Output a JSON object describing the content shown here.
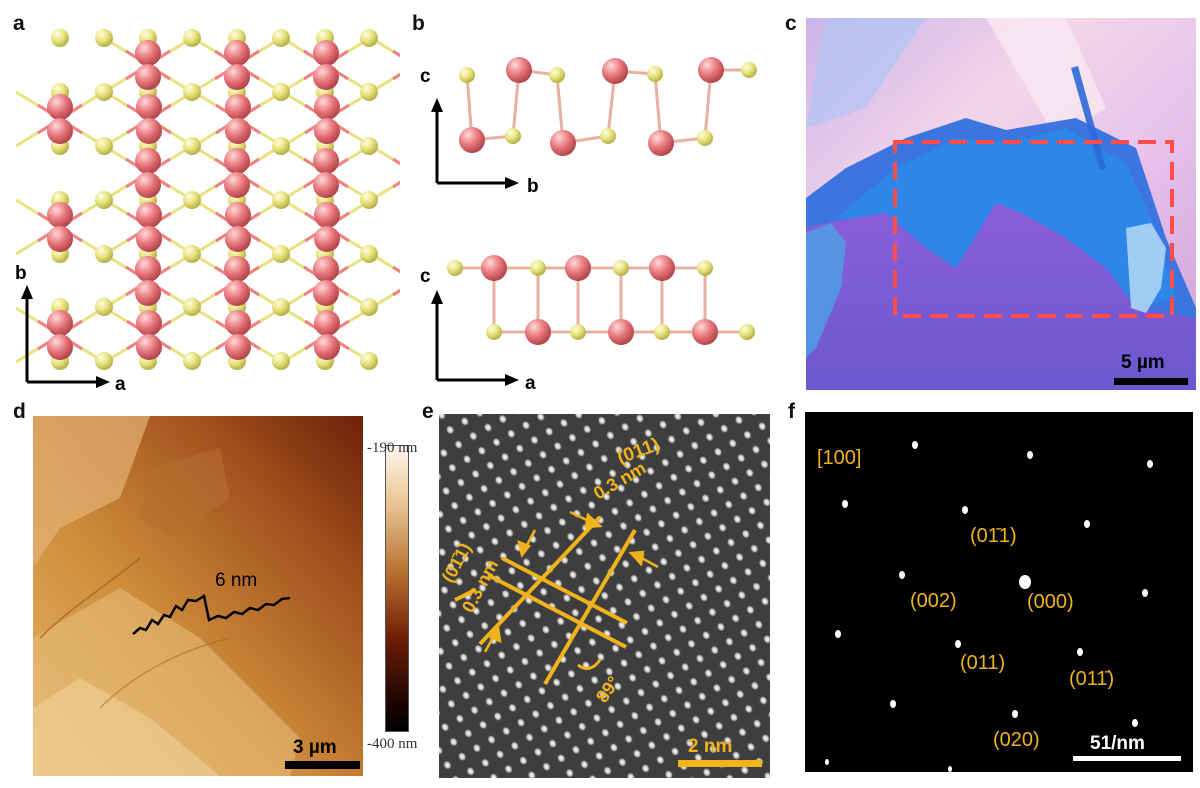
{
  "panels": {
    "a": {
      "letter": "a",
      "axis_v": "b",
      "axis_h": "a"
    },
    "b": {
      "letter": "b",
      "top_axis_v": "c",
      "top_axis_h": "b",
      "bottom_axis_v": "c",
      "bottom_axis_h": "a"
    },
    "c": {
      "letter": "c",
      "scale_label": "5 µm"
    },
    "d": {
      "letter": "d",
      "profile_label": "6 nm",
      "scale_label": "3 µm",
      "colorbar_max": "-190 nm",
      "colorbar_min": "-400 nm"
    },
    "e": {
      "letter": "e",
      "plane_1": "(011)",
      "spacing_1": "0.3 nm",
      "plane_2": "(01̄1)",
      "spacing_2": "0.3 nm",
      "angle": "89°",
      "scale_label": "2 nm"
    },
    "f": {
      "letter": "f",
      "zone_axis": "[100]",
      "spots": [
        "(01̄1)",
        "(002)",
        "(000)",
        "(011)",
        "(011̄)",
        "(020)"
      ],
      "scale_label": "51/nm"
    }
  },
  "colors": {
    "metal_atom": "#e07a7f",
    "chalcogen_atom": "#e6e27a",
    "annotation": "#f1b31c",
    "marker_box": "#ff4d4d"
  }
}
